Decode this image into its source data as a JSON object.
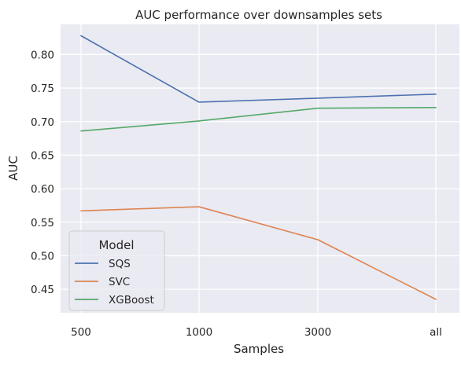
{
  "chart_data": {
    "type": "line",
    "title": "AUC performance over downsamples sets",
    "xlabel": "Samples",
    "ylabel": "AUC",
    "categories": [
      "500",
      "1000",
      "3000",
      "all"
    ],
    "ylim": [
      0.415,
      0.845
    ],
    "yticks": [
      0.45,
      0.5,
      0.55,
      0.6,
      0.65,
      0.7,
      0.75,
      0.8
    ],
    "ytick_labels": [
      "0.45",
      "0.50",
      "0.55",
      "0.60",
      "0.65",
      "0.70",
      "0.75",
      "0.80"
    ],
    "grid": true,
    "background_color": "#EAEAF2",
    "legend": {
      "title": "Model",
      "placement": "lower-left"
    },
    "series": [
      {
        "name": "SQS",
        "color": "#4C72B0",
        "values": [
          0.828,
          0.729,
          0.735,
          0.741
        ]
      },
      {
        "name": "SVC",
        "color": "#DD8452",
        "values": [
          0.567,
          0.573,
          0.524,
          0.435
        ]
      },
      {
        "name": "XGBoost",
        "color": "#55A868",
        "values": [
          0.686,
          0.701,
          0.72,
          0.721
        ]
      }
    ]
  }
}
